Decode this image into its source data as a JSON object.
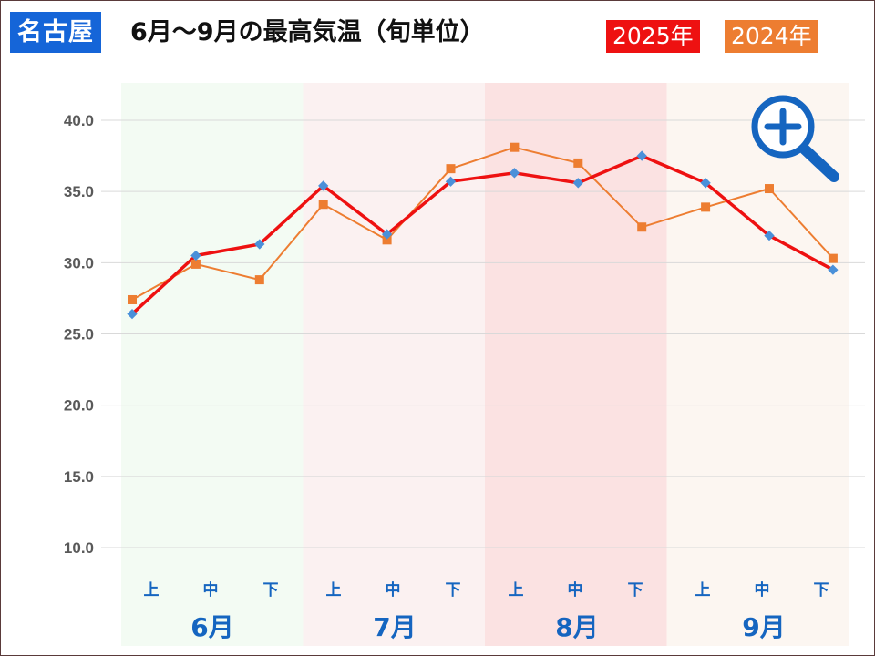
{
  "header": {
    "city": "名古屋",
    "title": "6月～9月の最高気温（旬単位）"
  },
  "colors": {
    "city_badge": "#1565d8",
    "series_2025": "#ee1111",
    "series_2025_marker": "#4a90d9",
    "series_2024": "#ed7d31",
    "series_2024_marker": "#ed7d31",
    "band_june": "#f3fbf3",
    "band_july": "#fbf1f1",
    "band_august": "#fbe2e2",
    "band_september": "#fcf6f1",
    "axis_label": "#595959",
    "month_label": "#1565c0",
    "zoom_icon": "#1565c0"
  },
  "zoom_button": {
    "icon": "zoom-in-magnifier-icon"
  },
  "chart_data": {
    "type": "line",
    "title": "6月～9月の最高気温（旬単位）",
    "categories": [
      "上",
      "中",
      "下",
      "上",
      "中",
      "下",
      "上",
      "中",
      "下",
      "上",
      "中",
      "下"
    ],
    "months": [
      "6月",
      "7月",
      "8月",
      "9月"
    ],
    "ylim": [
      10.0,
      40.0
    ],
    "yticks": [
      "10.0",
      "15.0",
      "20.0",
      "25.0",
      "30.0",
      "35.0",
      "40.0"
    ],
    "grid": true,
    "legend_placement": "top-right",
    "series": [
      {
        "name": "2025年",
        "color": "#ee1111",
        "values": [
          26.4,
          30.5,
          31.3,
          35.4,
          32.0,
          35.7,
          36.3,
          35.6,
          37.5,
          35.6,
          31.9,
          29.5
        ]
      },
      {
        "name": "2024年",
        "color": "#ed7d31",
        "values": [
          27.4,
          29.9,
          28.8,
          34.1,
          31.6,
          36.6,
          38.1,
          37.0,
          32.5,
          33.9,
          35.2,
          30.3
        ]
      }
    ]
  }
}
